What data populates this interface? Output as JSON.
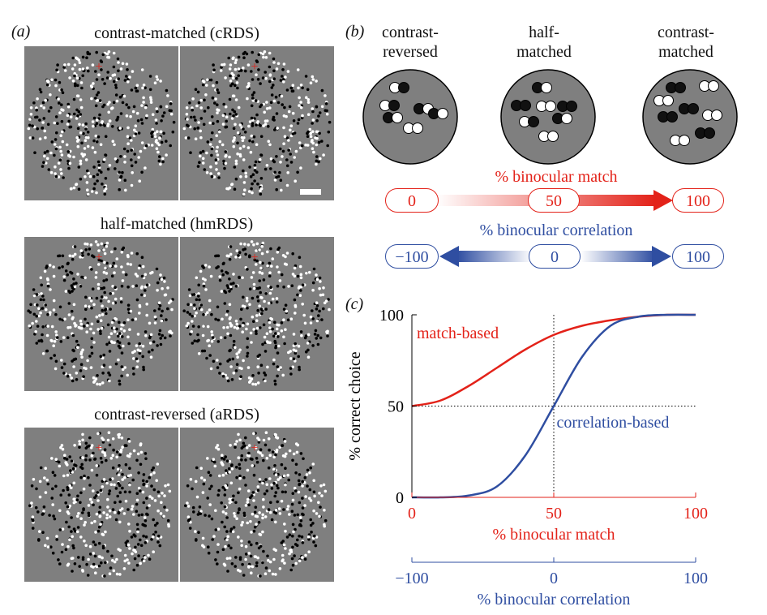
{
  "panel_a": {
    "letter": "(a)",
    "sections": [
      {
        "title": "contrast-matched (cRDS)"
      },
      {
        "title": "half-matched (hmRDS)"
      },
      {
        "title": "contrast-reversed (aRDS)"
      }
    ]
  },
  "panel_b": {
    "letter": "(b)",
    "conditions": [
      {
        "line1": "contrast-",
        "line2": "reversed"
      },
      {
        "line1": "half-",
        "line2": "matched"
      },
      {
        "line1": "contrast-",
        "line2": "matched"
      }
    ],
    "match_scale": {
      "title": "% binocular match",
      "values": [
        "0",
        "50",
        "100"
      ]
    },
    "correlation_scale": {
      "title": "% binocular correlation",
      "values": [
        "−100",
        "0",
        "100"
      ]
    },
    "colors": {
      "red": "#e32219",
      "blue": "#2f4ea1"
    }
  },
  "panel_c": {
    "letter": "(c)",
    "chart_data": {
      "type": "line",
      "ylabel": "% correct choice",
      "y_ticks": [
        "0",
        "50",
        "100"
      ],
      "ylim": [
        0,
        100
      ],
      "x_primary": {
        "label": "% binocular match",
        "ticks": [
          "0",
          "50",
          "100"
        ],
        "range": [
          0,
          100
        ],
        "color": "#e32219"
      },
      "x_secondary": {
        "label": "% binocular correlation",
        "ticks": [
          "−100",
          "0",
          "100"
        ],
        "range": [
          -100,
          100
        ],
        "color": "#2f4ea1"
      },
      "series": [
        {
          "name": "match-based",
          "color": "#e32219",
          "x": [
            0,
            10,
            20,
            30,
            40,
            50,
            60,
            70,
            80,
            90,
            100
          ],
          "y": [
            50,
            53,
            61,
            71,
            81,
            89,
            94,
            97,
            99,
            100,
            100
          ]
        },
        {
          "name": "correlation-based",
          "color": "#2f4ea1",
          "x": [
            0,
            10,
            20,
            30,
            40,
            50,
            60,
            70,
            80,
            90,
            100
          ],
          "y": [
            0,
            0,
            1,
            6,
            23,
            50,
            77,
            94,
            99,
            100,
            100
          ]
        }
      ],
      "reference_lines": {
        "vertical_x": 50,
        "horizontal_y": 50
      }
    }
  }
}
